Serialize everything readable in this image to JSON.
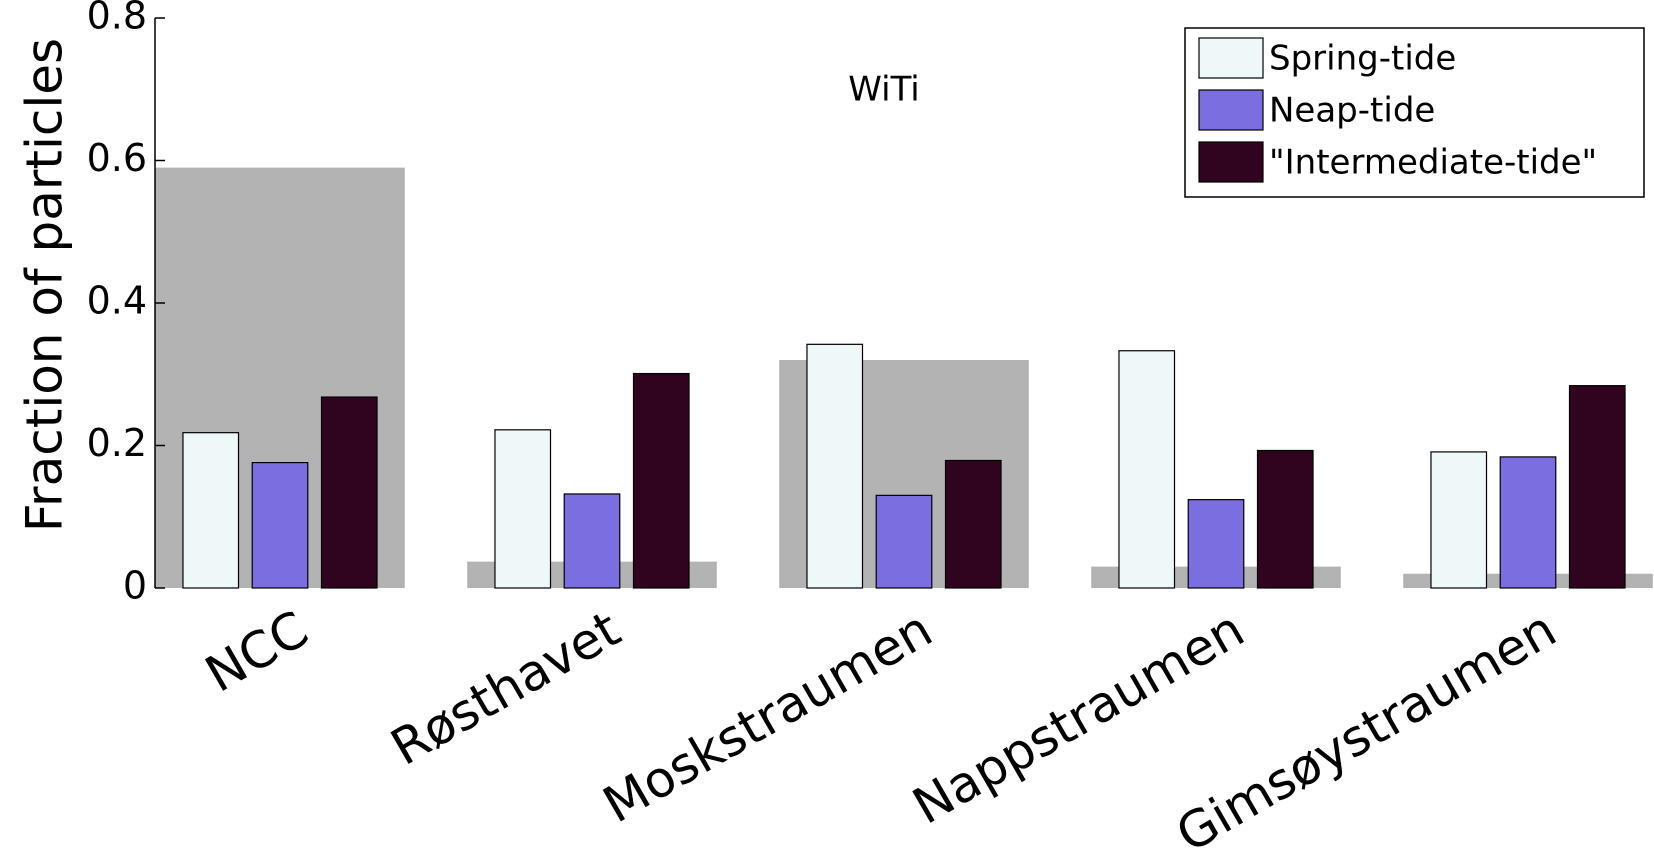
{
  "chart_data": {
    "type": "bar",
    "title": "WiTi",
    "y_label": "Fraction of particles",
    "categories": [
      "NCC",
      "Røsthavet",
      "Moskstraumen",
      "Nappstraumen",
      "Gimsøystraumen"
    ],
    "background": {
      "color": "#b3b3b3",
      "values": [
        0.59,
        0.037,
        0.32,
        0.03,
        0.02
      ]
    },
    "series": [
      {
        "name": "Spring-tide",
        "color": "#eef8f8",
        "values": [
          0.218,
          0.222,
          0.342,
          0.333,
          0.191
        ]
      },
      {
        "name": "Neap-tide",
        "color": "#7b6ee0",
        "values": [
          0.176,
          0.132,
          0.13,
          0.124,
          0.184
        ]
      },
      {
        "name": "\"Intermediate-tide\"",
        "color": "#30041e",
        "values": [
          0.268,
          0.301,
          0.179,
          0.193,
          0.284
        ]
      }
    ],
    "ylim": [
      0,
      0.8
    ],
    "yticks": [
      0,
      0.2,
      0.4,
      0.6,
      0.8
    ],
    "legend": "upper right"
  }
}
